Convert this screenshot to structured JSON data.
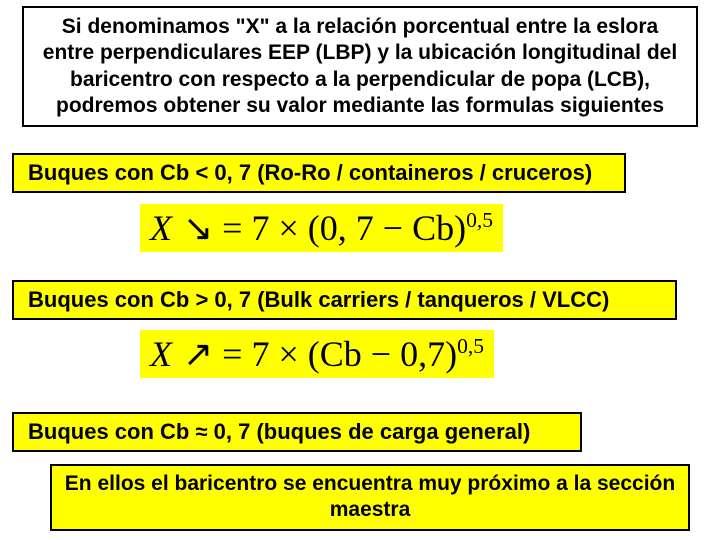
{
  "intro": {
    "text": "Si denominamos \"X\" a la relación porcentual entre la eslora entre perpendiculares EEP (LBP) y la ubicación longitudinal del baricentro con respecto a la perpendicular de popa (LCB), podremos obtener su valor mediante las formulas siguientes",
    "background": "#ffffff",
    "border_color": "#000000",
    "font_size": 21,
    "font_weight": "bold"
  },
  "rule1": {
    "text": "Buques con Cb < 0, 7 (Ro-Ro / containeros / cruceros)",
    "background": "#ffff00",
    "font_size": 22
  },
  "formula1": {
    "lhs": "X",
    "op": "= 7 ×",
    "group": "(0, 7 − Cb)",
    "exp": "0,5",
    "background": "#ffff00",
    "font_family": "Times New Roman",
    "font_size": 36,
    "arrow": "↘"
  },
  "rule2": {
    "text": "Buques con Cb > 0, 7 (Bulk carriers / tanqueros / VLCC)",
    "background": "#ffff00",
    "font_size": 22
  },
  "formula2": {
    "lhs": "X",
    "op": "= 7 ×",
    "group": "(Cb − 0,7)",
    "exp": "0,5",
    "background": "#ffff00",
    "font_family": "Times New Roman",
    "font_size": 36,
    "arrow": "↗"
  },
  "rule3": {
    "prefix": "Buques con Cb ",
    "symbol": "≈",
    "suffix": " 0, 7 (buques de carga general)",
    "background": "#ffff00",
    "font_size": 22
  },
  "conclusion": {
    "text": "En ellos el baricentro se encuentra muy próximo a la sección maestra",
    "background": "#ffff00",
    "font_size": 21
  },
  "colors": {
    "yellow": "#ffff00",
    "black": "#000000",
    "white": "#ffffff"
  }
}
